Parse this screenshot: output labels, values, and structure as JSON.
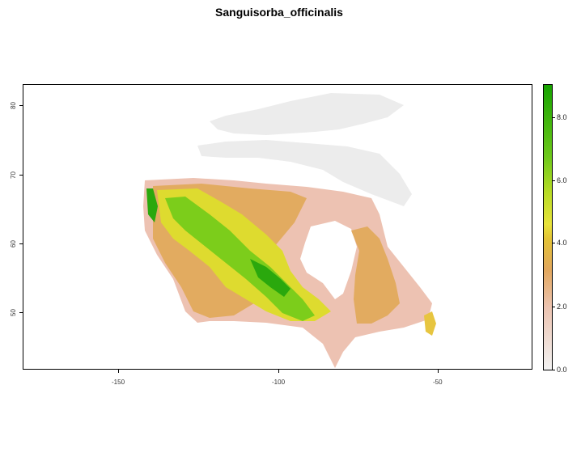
{
  "title": "Sanguisorba_officinalis",
  "map": {
    "x_ticks": [
      "-150",
      "-100",
      "-50"
    ],
    "y_ticks": [
      "50",
      "60",
      "70",
      "80"
    ],
    "x_range": [
      -180,
      -20
    ],
    "y_range": [
      41.5,
      83.5
    ]
  },
  "legend": {
    "ticks": [
      "0.0",
      "2.0",
      "4.0",
      "6.0",
      "8.0"
    ],
    "min": 0,
    "max": 9,
    "colors": {
      "low": "#f2f2f2",
      "mid_low": "#ecc3b0",
      "mid": "#e2a75d",
      "mid_high": "#e8e33a",
      "high": "#16a300"
    }
  }
}
